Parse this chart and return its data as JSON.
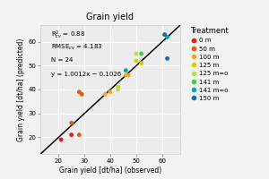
{
  "title": "Grain yield",
  "xlabel": "Grain yield [dt/ha] (observed)",
  "ylabel": "Grain yield [dt/ha] (predicted)",
  "xlim": [
    13,
    67
  ],
  "ylim": [
    13,
    67
  ],
  "xticks": [
    20,
    30,
    40,
    50,
    60
  ],
  "yticks": [
    20,
    30,
    40,
    50,
    60
  ],
  "annotation_lines": [
    "R²cv = 0.88",
    "RMSEcv = 4.183",
    "N = 24",
    "y = 1.0012x − 0.1026"
  ],
  "regression_slope": 1.0012,
  "regression_intercept": -0.1026,
  "background_color": "#ebebeb",
  "grid_color": "#ffffff",
  "fig_bg": "#f2f2f2",
  "treatments": {
    "0 m": {
      "color": "#e31a1c",
      "x": [
        21,
        25
      ],
      "y": [
        19,
        21
      ]
    },
    "50 m": {
      "color": "#e05c10",
      "x": [
        25,
        28,
        29,
        28
      ],
      "y": [
        26,
        39,
        38,
        21
      ]
    },
    "100 m": {
      "color": "#f5a623",
      "x": [
        38,
        40,
        46,
        47
      ],
      "y": [
        38,
        39,
        46,
        46
      ]
    },
    "125 m": {
      "color": "#d4cf00",
      "x": [
        43,
        50,
        52
      ],
      "y": [
        41,
        52,
        51
      ]
    },
    "125 m=o": {
      "color": "#b8e040",
      "x": [
        43,
        50
      ],
      "y": [
        40,
        55
      ]
    },
    "141 m": {
      "color": "#44cc44",
      "x": [
        52,
        61
      ],
      "y": [
        55,
        63
      ]
    },
    "141 m=o": {
      "color": "#00aaaa",
      "x": [
        46,
        62
      ],
      "y": [
        48,
        62
      ]
    },
    "150 m": {
      "color": "#2166ac",
      "x": [
        61,
        62
      ],
      "y": [
        63,
        53
      ]
    }
  },
  "legend_title": "Treatment",
  "legend_colors": {
    "0 m": "#e31a1c",
    "50 m": "#e05c10",
    "100 m": "#f5a623",
    "125 m": "#d4cf00",
    "125 m=o": "#b8e040",
    "141 m": "#44cc44",
    "141 m=o": "#00aaaa",
    "150 m": "#2166ac"
  }
}
